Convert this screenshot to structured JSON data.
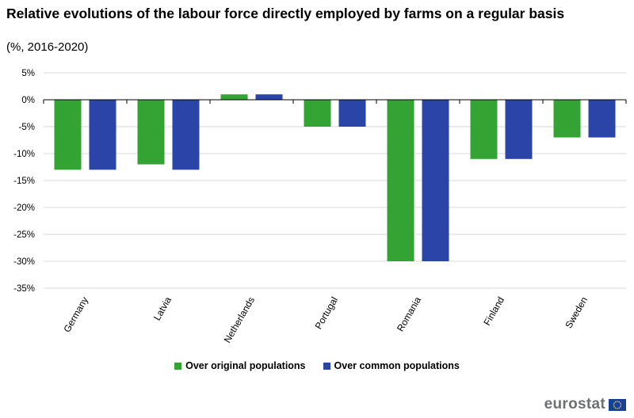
{
  "header": {
    "title": "Relative evolutions of the labour force directly employed by farms on a regular basis",
    "subtitle": "(%, 2016-2020)"
  },
  "legend": {
    "items": [
      {
        "label": "Over original populations",
        "color": "#33a333"
      },
      {
        "label": "Over common populations",
        "color": "#2a44a8"
      }
    ]
  },
  "branding": {
    "logo_text": "eurostat"
  },
  "chart_data": {
    "type": "bar",
    "categories": [
      "Germany",
      "Latvia",
      "Netherlands",
      "Portugal",
      "Romania",
      "Finland",
      "Sweden"
    ],
    "series": [
      {
        "name": "Over original populations",
        "color": "#33a333",
        "values": [
          -13,
          -12,
          1,
          -5,
          -30,
          -11,
          -7
        ]
      },
      {
        "name": "Over common populations",
        "color": "#2a44a8",
        "values": [
          -13,
          -13,
          1,
          -5,
          -30,
          -11,
          -7
        ]
      }
    ],
    "title": "Relative evolutions of the labour force directly employed by farms on a regular basis",
    "subtitle": "(%, 2016-2020)",
    "ylim": [
      -35,
      5
    ],
    "yticks": [
      5,
      0,
      -5,
      -10,
      -15,
      -20,
      -25,
      -30,
      -35
    ],
    "ytick_labels": [
      "5%",
      "0%",
      "-5%",
      "-10%",
      "-15%",
      "-20%",
      "-25%",
      "-30%",
      "-35%"
    ],
    "grid": true,
    "legend_position": "bottom"
  }
}
